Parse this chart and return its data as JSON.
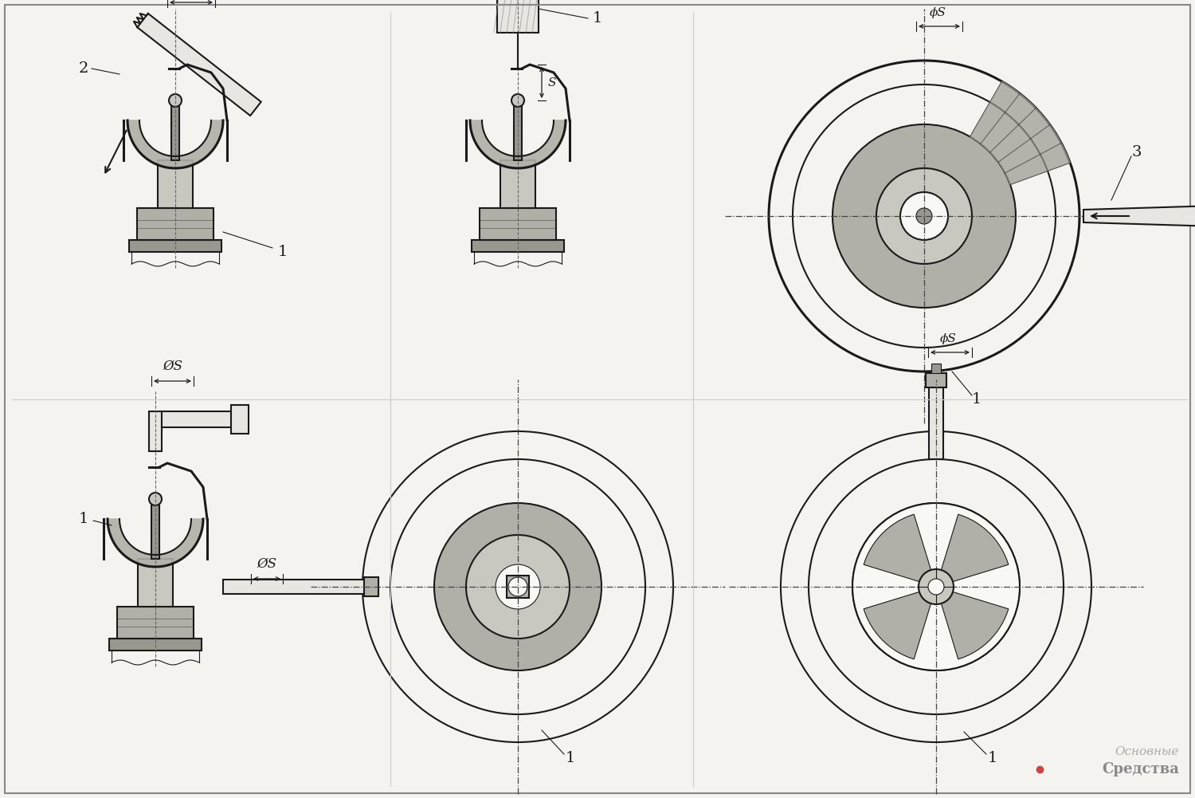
{
  "background_color": "#f5f3ef",
  "line_color": "#1a1a1a",
  "fig_width": 15.0,
  "fig_height": 10.01,
  "dpi": 100,
  "watermark_1": "Основные",
  "watermark_2": "Средства",
  "watermark_color1": "#aaaaaa",
  "watermark_color2": "#888888",
  "watermark_dot_color": "#cc4444",
  "label_phi_s": "ØS",
  "label_phi_s_small": "ϕS",
  "label_s": "S",
  "panel_div_color": "#cccccc",
  "grey_fill": "#c8c8c0",
  "grey_fill2": "#b0b0a8",
  "grey_fill3": "#989890",
  "white_fill": "#f8f8f5",
  "tool_fill": "#e8e6e0",
  "hatch_color": "#888880"
}
